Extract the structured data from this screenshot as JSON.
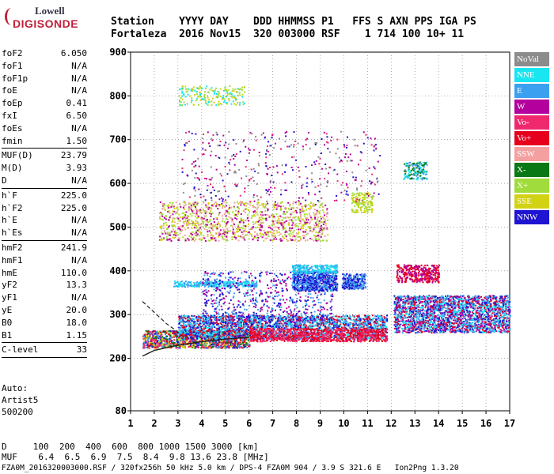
{
  "logo": {
    "line1": "Lowell",
    "line2": "DIGISONDE"
  },
  "header": {
    "line1": "Station    YYYY DAY    DDD HHMMSS P1   FFS S AXN PPS IGA PS",
    "line2": "Fortaleza  2016 Nov15  320 003000 RSF    1 714 100 10+ 11"
  },
  "params": [
    {
      "name": "foF2",
      "value": "6.050"
    },
    {
      "name": "foF1",
      "value": "N/A"
    },
    {
      "name": "foF1p",
      "value": "N/A"
    },
    {
      "name": "foE",
      "value": "N/A"
    },
    {
      "name": "foEp",
      "value": "0.41"
    },
    {
      "name": "fxI",
      "value": "6.50"
    },
    {
      "name": "foEs",
      "value": "N/A"
    },
    {
      "name": "fmin",
      "value": "1.50"
    },
    {
      "sep": true
    },
    {
      "name": "MUF(D)",
      "value": "23.79"
    },
    {
      "name": "M(D)",
      "value": "3.93"
    },
    {
      "name": "D",
      "value": "N/A"
    },
    {
      "sep": true
    },
    {
      "name": "h`F",
      "value": "225.0"
    },
    {
      "name": "h`F2",
      "value": "225.0"
    },
    {
      "name": "h`E",
      "value": "N/A"
    },
    {
      "name": "h`Es",
      "value": "N/A"
    },
    {
      "sep": true
    },
    {
      "name": "hmF2",
      "value": "241.9"
    },
    {
      "name": "hmF1",
      "value": "N/A"
    },
    {
      "name": "hmE",
      "value": "110.0"
    },
    {
      "name": "yF2",
      "value": "13.3"
    },
    {
      "name": "yF1",
      "value": "N/A"
    },
    {
      "name": "yE",
      "value": "20.0"
    },
    {
      "name": "B0",
      "value": "18.0"
    },
    {
      "name": "B1",
      "value": "1.15"
    },
    {
      "sep": true
    },
    {
      "name": "C-level",
      "value": "33"
    },
    {
      "sep": true
    }
  ],
  "autoscale": {
    "line1": "Auto:",
    "line2": "Artist5",
    "line3": "500200"
  },
  "legend": [
    {
      "label": "NoVal",
      "color": "#8c8c8c"
    },
    {
      "label": "NNE",
      "color": "#19e6f0"
    },
    {
      "label": "E",
      "color": "#3ca0f0"
    },
    {
      "label": "W",
      "color": "#b4009c"
    },
    {
      "label": "Vo-",
      "color": "#f0286e"
    },
    {
      "label": "Vo+",
      "color": "#e6001e"
    },
    {
      "label": "SSW",
      "color": "#f5a0a0"
    },
    {
      "label": "X-",
      "color": "#0a7814"
    },
    {
      "label": "X+",
      "color": "#a0dc3c"
    },
    {
      "label": "SSE",
      "color": "#d2d214"
    },
    {
      "label": "NNW",
      "color": "#1e14d2"
    }
  ],
  "footer": {
    "line1": "D     100  200  400  600  800 1000 1500 3000 [km]",
    "line2": "MUF    6.4  6.5  6.9  7.5  8.4  9.8 13.6 23.8 [MHz]",
    "line3": "FZA0M_2016320003000.RSF / 320fx256h 50 kHz 5.0 km / DPS-4 FZA0M 904 / 3.9 S 321.6 E   Ion2Png 1.3.20"
  },
  "chart_data": {
    "type": "scatter",
    "title": "",
    "xlabel": "",
    "ylabel": "",
    "xlim": [
      1,
      17
    ],
    "ylim": [
      80,
      900
    ],
    "x_ticks": [
      "1",
      "2",
      "3",
      "4",
      "5",
      "6",
      "7",
      "8",
      "9",
      "10",
      "11",
      "12",
      "13",
      "14",
      "15",
      "16",
      "17"
    ],
    "y_ticks": [
      "80",
      "200",
      "300",
      "400",
      "500",
      "600",
      "700",
      "800",
      "900"
    ],
    "grid": true,
    "legend_position": "right",
    "clusters": [
      {
        "name": "trace-low",
        "x": [
          1.5,
          6.0
        ],
        "y": [
          225,
          265
        ],
        "colors": [
          "#e6001e",
          "#f0286e",
          "#3ca0f0",
          "#1e14d2",
          "#0a7814",
          "#d2d214"
        ],
        "density": 1400
      },
      {
        "name": "trace-F-main",
        "x": [
          3.0,
          11.8
        ],
        "y": [
          245,
          300
        ],
        "colors": [
          "#3ca0f0",
          "#19e6f0",
          "#e6001e",
          "#1e14d2"
        ],
        "density": 2600
      },
      {
        "name": "red-base",
        "x": [
          6.0,
          11.8
        ],
        "y": [
          240,
          270
        ],
        "colors": [
          "#e6001e",
          "#f0286e"
        ],
        "density": 900
      },
      {
        "name": "right-band",
        "x": [
          12.1,
          17.0
        ],
        "y": [
          260,
          345
        ],
        "colors": [
          "#1e14d2",
          "#3ca0f0",
          "#19e6f0",
          "#e6001e",
          "#b4009c"
        ],
        "density": 2400
      },
      {
        "name": "cyan-400",
        "x": [
          2.8,
          6.3
        ],
        "y": [
          365,
          378
        ],
        "colors": [
          "#3ca0f0",
          "#19e6f0"
        ],
        "density": 300
      },
      {
        "name": "purple-350",
        "x": [
          4.0,
          9.5
        ],
        "y": [
          280,
          400
        ],
        "colors": [
          "#1e14d2",
          "#b4009c",
          "#3ca0f0"
        ],
        "density": 700
      },
      {
        "name": "blue-390",
        "x": [
          7.8,
          9.7
        ],
        "y": [
          355,
          400
        ],
        "colors": [
          "#1e14d2",
          "#3ca0f0"
        ],
        "density": 600
      },
      {
        "name": "cyan-410",
        "x": [
          7.8,
          9.7
        ],
        "y": [
          395,
          415
        ],
        "colors": [
          "#19e6f0",
          "#3ca0f0"
        ],
        "density": 250
      },
      {
        "name": "blue-390b",
        "x": [
          9.9,
          10.9
        ],
        "y": [
          360,
          395
        ],
        "colors": [
          "#1e14d2",
          "#3ca0f0"
        ],
        "density": 250
      },
      {
        "name": "purple-395",
        "x": [
          12.2,
          14.0
        ],
        "y": [
          375,
          415
        ],
        "colors": [
          "#b4009c",
          "#e6001e"
        ],
        "density": 350
      },
      {
        "name": "yellow-500",
        "x": [
          2.2,
          9.3
        ],
        "y": [
          470,
          560
        ],
        "colors": [
          "#d2d214",
          "#f5a0a0",
          "#b4009c",
          "#a0dc3c"
        ],
        "density": 1200
      },
      {
        "name": "yellow-540",
        "x": [
          10.3,
          11.2
        ],
        "y": [
          535,
          580
        ],
        "colors": [
          "#d2d214",
          "#a0dc3c"
        ],
        "density": 150
      },
      {
        "name": "top-800",
        "x": [
          3.0,
          5.8
        ],
        "y": [
          780,
          825
        ],
        "colors": [
          "#d2d214",
          "#a0dc3c",
          "#19e6f0"
        ],
        "density": 200
      },
      {
        "name": "green-630",
        "x": [
          12.5,
          13.5
        ],
        "y": [
          610,
          650
        ],
        "colors": [
          "#0a7814",
          "#19e6f0",
          "#3ca0f0"
        ],
        "density": 150
      },
      {
        "name": "scatter-high",
        "x": [
          3.0,
          11.5
        ],
        "y": [
          560,
          720
        ],
        "colors": [
          "#b4009c",
          "#1e14d2",
          "#f0286e",
          "#8c8c8c"
        ],
        "density": 400
      }
    ],
    "virtual_height_curve": {
      "x": [
        1.5,
        2.0,
        3.0,
        4.0,
        5.0,
        6.0
      ],
      "y": [
        205,
        218,
        230,
        238,
        244,
        248
      ]
    },
    "dashed_curve": {
      "x": [
        1.5,
        2.0,
        2.5,
        3.0,
        3.3
      ],
      "y": [
        330,
        305,
        280,
        260,
        245
      ]
    }
  }
}
